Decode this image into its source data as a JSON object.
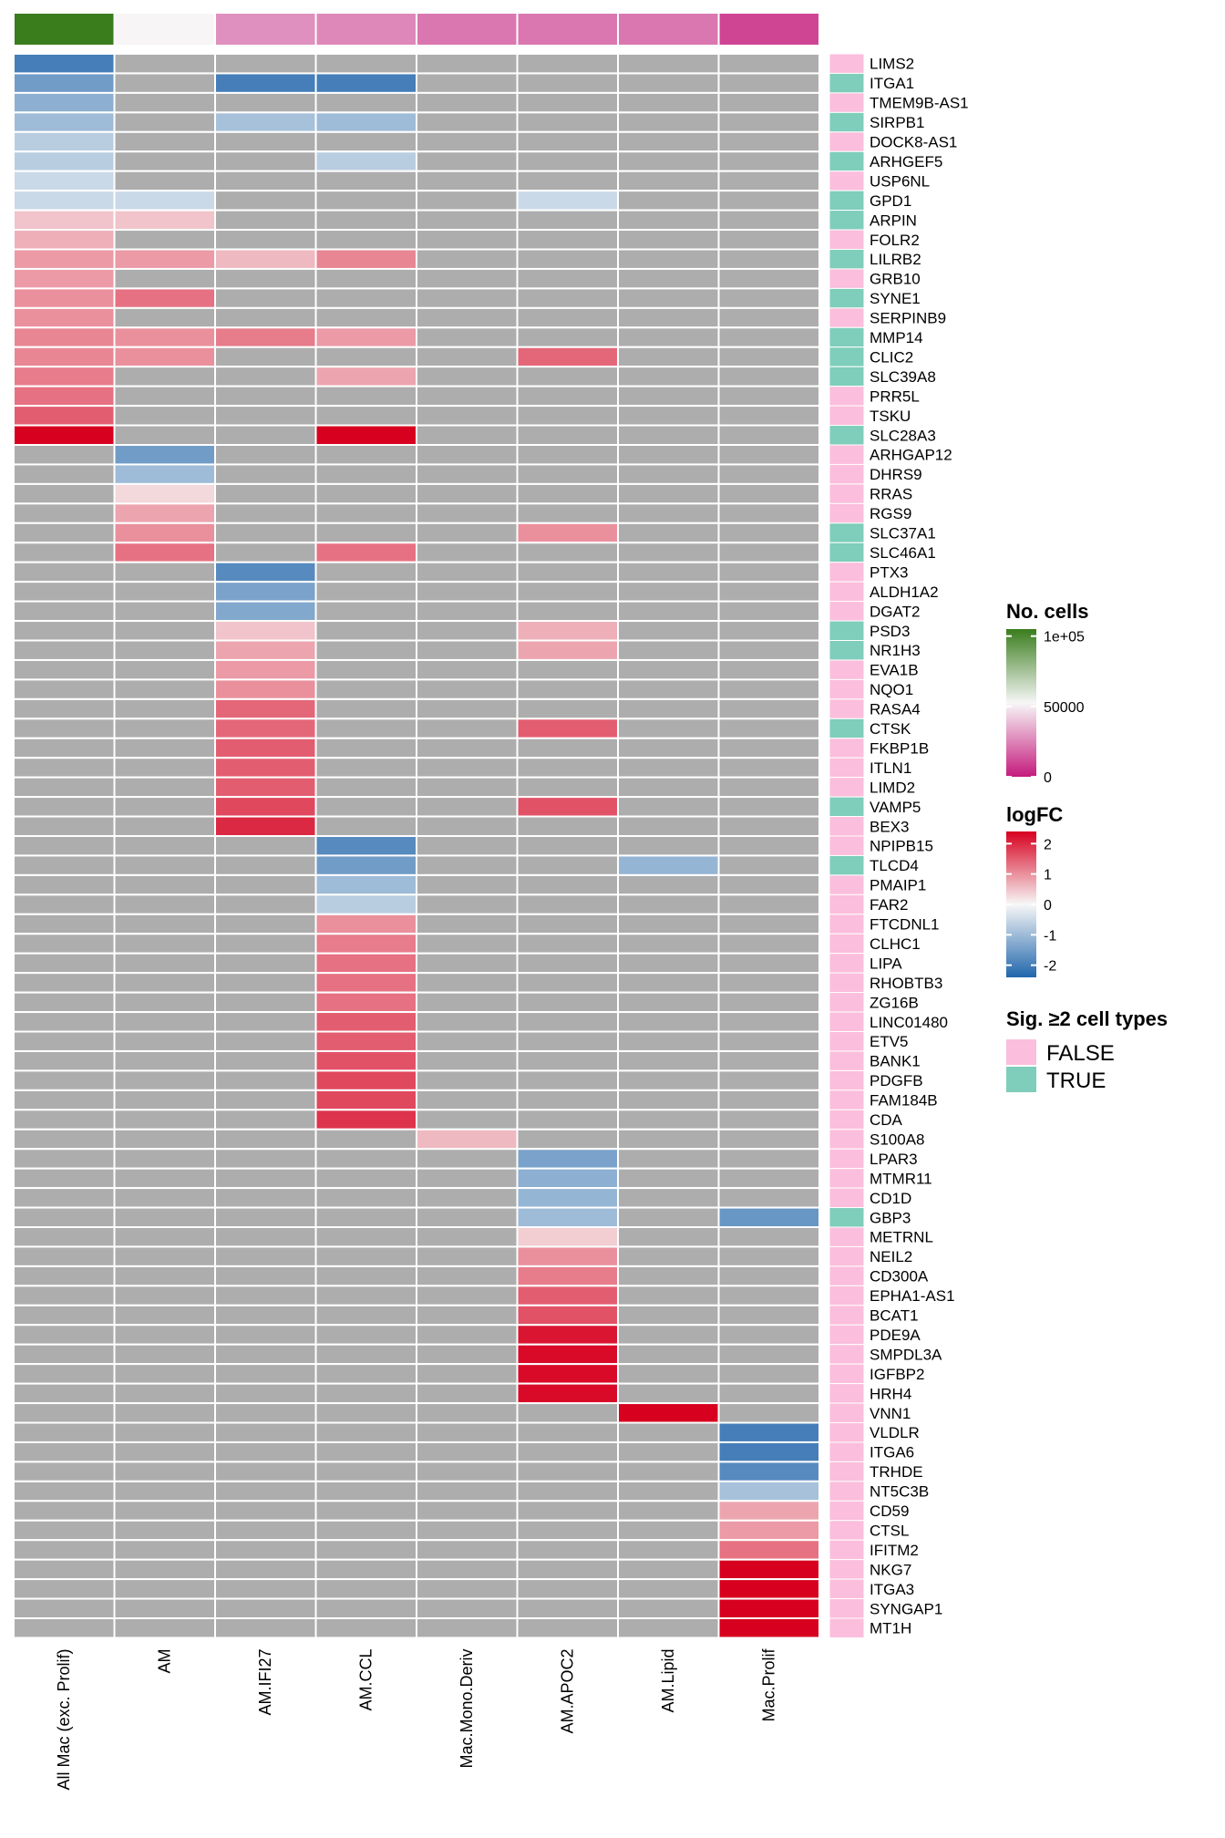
{
  "chart_data": {
    "type": "heatmap",
    "columns": [
      "All Mac (exc. Prolif)",
      "AM",
      "AM.IFI27",
      "AM.CCL",
      "Mac.Mono.Deriv",
      "AM.APOC2",
      "AM.Lipid",
      "Mac.Prolif"
    ],
    "rows": [
      "LIMS2",
      "ITGA1",
      "TMEM9B-AS1",
      "SIRPB1",
      "DOCK8-AS1",
      "ARHGEF5",
      "USP6NL",
      "GPD1",
      "ARPIN",
      "FOLR2",
      "LILRB2",
      "GRB10",
      "SYNE1",
      "SERPINB9",
      "MMP14",
      "CLIC2",
      "SLC39A8",
      "PRR5L",
      "TSKU",
      "SLC28A3",
      "ARHGAP12",
      "DHRS9",
      "RRAS",
      "RGS9",
      "SLC37A1",
      "SLC46A1",
      "PTX3",
      "ALDH1A2",
      "DGAT2",
      "PSD3",
      "NR1H3",
      "EVA1B",
      "NQO1",
      "RASA4",
      "CTSK",
      "FKBP1B",
      "ITLN1",
      "LIMD2",
      "VAMP5",
      "BEX3",
      "NPIPB15",
      "TLCD4",
      "PMAIP1",
      "FAR2",
      "FTCDNL1",
      "CLHC1",
      "LIPA",
      "RHOBTB3",
      "ZG16B",
      "LINC01480",
      "ETV5",
      "BANK1",
      "PDGFB",
      "FAM184B",
      "CDA",
      "S100A8",
      "LPAR3",
      "MTMR11",
      "CD1D",
      "GBP3",
      "METRNL",
      "NEIL2",
      "CD300A",
      "EPHA1-AS1",
      "BCAT1",
      "PDE9A",
      "SMPDL3A",
      "IGFBP2",
      "HRH4",
      "VNN1",
      "VLDLR",
      "ITGA6",
      "TRHDE",
      "NT5C3B",
      "CD59",
      "CTSL",
      "IFITM2",
      "NKG7",
      "ITGA3",
      "SYNGAP1",
      "MT1H"
    ],
    "logFC": [
      [
        -2.0,
        null,
        null,
        null,
        null,
        null,
        null,
        null
      ],
      [
        -1.5,
        null,
        -2.0,
        -2.0,
        null,
        null,
        null,
        null
      ],
      [
        -1.2,
        null,
        null,
        null,
        null,
        null,
        null,
        null
      ],
      [
        -1.0,
        null,
        -0.9,
        -1.0,
        null,
        null,
        null,
        null
      ],
      [
        -0.7,
        null,
        null,
        null,
        null,
        null,
        null,
        null
      ],
      [
        -0.7,
        null,
        null,
        -0.7,
        null,
        null,
        null,
        null
      ],
      [
        -0.5,
        null,
        null,
        null,
        null,
        null,
        null,
        null
      ],
      [
        -0.5,
        -0.5,
        null,
        null,
        null,
        -0.5,
        null,
        null
      ],
      [
        0.5,
        0.5,
        null,
        null,
        null,
        null,
        null,
        null
      ],
      [
        0.7,
        null,
        null,
        null,
        null,
        null,
        null,
        null
      ],
      [
        0.9,
        0.9,
        0.6,
        1.1,
        null,
        null,
        null,
        null
      ],
      [
        0.9,
        null,
        null,
        null,
        null,
        null,
        null,
        null
      ],
      [
        1.0,
        1.3,
        null,
        null,
        null,
        null,
        null,
        null
      ],
      [
        1.0,
        null,
        null,
        null,
        null,
        null,
        null,
        null
      ],
      [
        1.1,
        1.0,
        1.2,
        0.9,
        null,
        null,
        null,
        null
      ],
      [
        1.1,
        1.0,
        null,
        null,
        null,
        1.4,
        null,
        null
      ],
      [
        1.2,
        null,
        null,
        0.8,
        null,
        null,
        null,
        null
      ],
      [
        1.3,
        null,
        null,
        null,
        null,
        null,
        null,
        null
      ],
      [
        1.5,
        null,
        null,
        null,
        null,
        null,
        null,
        null
      ],
      [
        2.4,
        null,
        null,
        2.4,
        null,
        null,
        null,
        null
      ],
      [
        null,
        -1.5,
        null,
        null,
        null,
        null,
        null,
        null
      ],
      [
        null,
        -1.0,
        null,
        null,
        null,
        null,
        null,
        null
      ],
      [
        null,
        0.3,
        null,
        null,
        null,
        null,
        null,
        null
      ],
      [
        null,
        0.8,
        null,
        null,
        null,
        null,
        null,
        null
      ],
      [
        null,
        1.0,
        null,
        null,
        null,
        1.0,
        null,
        null
      ],
      [
        null,
        1.3,
        null,
        1.3,
        null,
        null,
        null,
        null
      ],
      [
        null,
        null,
        -1.8,
        null,
        null,
        null,
        null,
        null
      ],
      [
        null,
        null,
        -1.4,
        null,
        null,
        null,
        null,
        null
      ],
      [
        null,
        null,
        -1.3,
        null,
        null,
        null,
        null,
        null
      ],
      [
        null,
        null,
        0.5,
        null,
        null,
        0.7,
        null,
        null
      ],
      [
        null,
        null,
        0.8,
        null,
        null,
        0.8,
        null,
        null
      ],
      [
        null,
        null,
        0.9,
        null,
        null,
        null,
        null,
        null
      ],
      [
        null,
        null,
        1.0,
        null,
        null,
        null,
        null,
        null
      ],
      [
        null,
        null,
        1.4,
        null,
        null,
        null,
        null,
        null
      ],
      [
        null,
        null,
        1.4,
        null,
        null,
        1.5,
        null,
        null
      ],
      [
        null,
        null,
        1.5,
        null,
        null,
        null,
        null,
        null
      ],
      [
        null,
        null,
        1.5,
        null,
        null,
        null,
        null,
        null
      ],
      [
        null,
        null,
        1.5,
        null,
        null,
        null,
        null,
        null
      ],
      [
        null,
        null,
        1.7,
        null,
        null,
        1.6,
        null,
        null
      ],
      [
        null,
        null,
        2.0,
        null,
        null,
        null,
        null,
        null
      ],
      [
        null,
        null,
        null,
        -1.8,
        null,
        null,
        null,
        null
      ],
      [
        null,
        null,
        null,
        -1.5,
        null,
        null,
        -1.1,
        null
      ],
      [
        null,
        null,
        null,
        -1.0,
        null,
        null,
        null,
        null
      ],
      [
        null,
        null,
        null,
        -0.7,
        null,
        null,
        null,
        null
      ],
      [
        null,
        null,
        null,
        1.0,
        null,
        null,
        null,
        null
      ],
      [
        null,
        null,
        null,
        1.2,
        null,
        null,
        null,
        null
      ],
      [
        null,
        null,
        null,
        1.3,
        null,
        null,
        null,
        null
      ],
      [
        null,
        null,
        null,
        1.3,
        null,
        null,
        null,
        null
      ],
      [
        null,
        null,
        null,
        1.3,
        null,
        null,
        null,
        null
      ],
      [
        null,
        null,
        null,
        1.5,
        null,
        null,
        null,
        null
      ],
      [
        null,
        null,
        null,
        1.5,
        null,
        null,
        null,
        null
      ],
      [
        null,
        null,
        null,
        1.6,
        null,
        null,
        null,
        null
      ],
      [
        null,
        null,
        null,
        1.7,
        null,
        null,
        null,
        null
      ],
      [
        null,
        null,
        null,
        1.7,
        null,
        null,
        null,
        null
      ],
      [
        null,
        null,
        null,
        1.9,
        null,
        null,
        null,
        null
      ],
      [
        null,
        null,
        null,
        null,
        0.6,
        null,
        null,
        null
      ],
      [
        null,
        null,
        null,
        null,
        null,
        -1.4,
        null,
        null
      ],
      [
        null,
        null,
        null,
        null,
        null,
        -1.2,
        null,
        null
      ],
      [
        null,
        null,
        null,
        null,
        null,
        -1.1,
        null,
        null
      ],
      [
        null,
        null,
        null,
        null,
        null,
        -1.0,
        null,
        -1.6
      ],
      [
        null,
        null,
        null,
        null,
        null,
        0.4,
        null,
        null
      ],
      [
        null,
        null,
        null,
        null,
        null,
        1.0,
        null,
        null
      ],
      [
        null,
        null,
        null,
        null,
        null,
        1.2,
        null,
        null
      ],
      [
        null,
        null,
        null,
        null,
        null,
        1.5,
        null,
        null
      ],
      [
        null,
        null,
        null,
        null,
        null,
        1.6,
        null,
        null
      ],
      [
        null,
        null,
        null,
        null,
        null,
        2.2,
        null,
        null
      ],
      [
        null,
        null,
        null,
        null,
        null,
        2.3,
        null,
        null
      ],
      [
        null,
        null,
        null,
        null,
        null,
        2.3,
        null,
        null
      ],
      [
        null,
        null,
        null,
        null,
        null,
        2.3,
        null,
        null
      ],
      [
        null,
        null,
        null,
        null,
        null,
        null,
        2.4,
        null
      ],
      [
        null,
        null,
        null,
        null,
        null,
        null,
        null,
        -2.0
      ],
      [
        null,
        null,
        null,
        null,
        null,
        null,
        null,
        -2.0
      ],
      [
        null,
        null,
        null,
        null,
        null,
        null,
        null,
        -1.8
      ],
      [
        null,
        null,
        null,
        null,
        null,
        null,
        null,
        -0.9
      ],
      [
        null,
        null,
        null,
        null,
        null,
        null,
        null,
        0.8
      ],
      [
        null,
        null,
        null,
        null,
        null,
        null,
        null,
        0.9
      ],
      [
        null,
        null,
        null,
        null,
        null,
        null,
        null,
        1.3
      ],
      [
        null,
        null,
        null,
        null,
        null,
        null,
        null,
        2.4
      ],
      [
        null,
        null,
        null,
        null,
        null,
        null,
        null,
        2.4
      ],
      [
        null,
        null,
        null,
        null,
        null,
        null,
        null,
        2.4
      ],
      [
        null,
        null,
        null,
        null,
        null,
        null,
        null,
        2.4
      ]
    ],
    "sig_two_or_more": [
      false,
      true,
      false,
      true,
      false,
      true,
      false,
      true,
      true,
      false,
      true,
      false,
      true,
      false,
      true,
      true,
      true,
      false,
      false,
      true,
      false,
      false,
      false,
      false,
      true,
      true,
      false,
      false,
      false,
      true,
      true,
      false,
      false,
      false,
      true,
      false,
      false,
      false,
      true,
      false,
      false,
      true,
      false,
      false,
      false,
      false,
      false,
      false,
      false,
      false,
      false,
      false,
      false,
      false,
      false,
      false,
      false,
      false,
      false,
      true,
      false,
      false,
      false,
      false,
      false,
      false,
      false,
      false,
      false,
      false,
      false,
      false,
      false,
      false,
      false,
      false,
      false,
      false,
      false,
      false,
      false
    ],
    "n_cells": [
      105000,
      52000,
      28000,
      26000,
      22000,
      22000,
      22000,
      10000
    ],
    "legends": {
      "n_cells": {
        "title": "No. cells",
        "ticks": [
          {
            "value": 100000,
            "label": "1e+05"
          },
          {
            "value": 50000,
            "label": "50000"
          },
          {
            "value": 0,
            "label": "0"
          }
        ],
        "range": [
          0,
          105000
        ]
      },
      "logFC": {
        "title": "logFC",
        "ticks": [
          2,
          1,
          0,
          -1,
          -2
        ],
        "range": [
          -2.4,
          2.4
        ]
      },
      "sig": {
        "title": "Sig. ≥2 cell types",
        "entries": [
          {
            "label": "FALSE",
            "color": "#FBBEDC"
          },
          {
            "label": "TRUE",
            "color": "#7FCDBB"
          }
        ]
      }
    },
    "colors": {
      "na": "#ADADAD",
      "logfc_neg": "#2166AC",
      "logfc_mid": "#F7F7F7",
      "logfc_pos": "#D7001F",
      "ncells_high": "#3A7D1D",
      "ncells_mid": "#F7F7F7",
      "ncells_low": "#C51B7D"
    }
  }
}
